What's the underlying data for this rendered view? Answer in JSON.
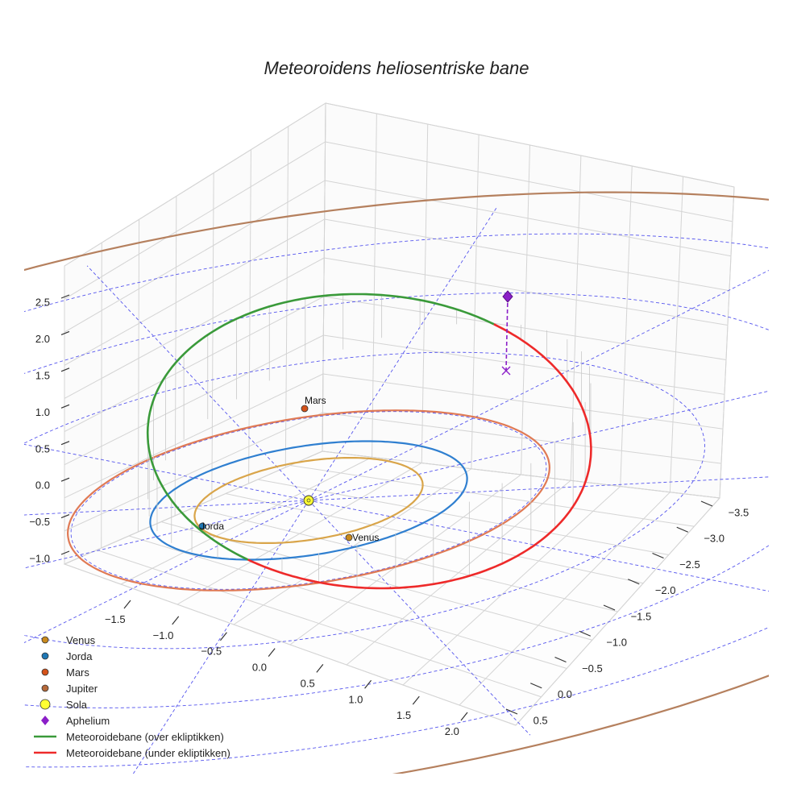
{
  "chart_data": {
    "type": "scatter",
    "title": "Meteoroidens heliosentriske bane",
    "xlabel": "",
    "ylabel": "",
    "zlabel": "",
    "projection": "3d",
    "grid": true,
    "legend_placement": "bottom-left",
    "x_ticks": [
      "−3.5",
      "−3.0",
      "−2.5",
      "−2.0",
      "−1.5",
      "−1.0",
      "−0.5",
      "0.0",
      "0.5"
    ],
    "y_ticks": [
      "−1.5",
      "−1.0",
      "−0.5",
      "0.0",
      "0.5",
      "1.0",
      "1.5",
      "2.0"
    ],
    "z_ticks": [
      "−1.0",
      "−0.5",
      "0.0",
      "0.5",
      "1.0",
      "1.5",
      "2.0",
      "2.5"
    ],
    "planets": [
      {
        "name": "Venus",
        "orbit_radius_au": 0.72,
        "label": "Venus",
        "color": "#c98a1e",
        "orbit_color": "#d9a54a"
      },
      {
        "name": "Jorda",
        "orbit_radius_au": 1.0,
        "label": "Jorda",
        "color": "#1f77b4",
        "orbit_color": "#2f7fd0"
      },
      {
        "name": "Mars",
        "orbit_radius_au": 1.52,
        "label": "Mars",
        "color": "#d4521a",
        "orbit_color": "#e07a55"
      },
      {
        "name": "Jupiter",
        "orbit_radius_au": 5.2,
        "label": "",
        "color": "#b5693a",
        "orbit_color": "#b5805e"
      }
    ],
    "sun": {
      "name": "Sola",
      "color": "#ffff33"
    },
    "aphelion": {
      "name": "Aphelium",
      "color": "#8b1fc8",
      "z_au": 1.35
    },
    "meteoroid_orbit": [
      {
        "name": "Meteoroidebane (over ekliptikken)",
        "color": "#3a9a3a"
      },
      {
        "name": "Meteoroidebane (under ekliptikken)",
        "color": "#ee2a2a"
      }
    ],
    "ecliptic_grid_color": "#5555ee"
  }
}
